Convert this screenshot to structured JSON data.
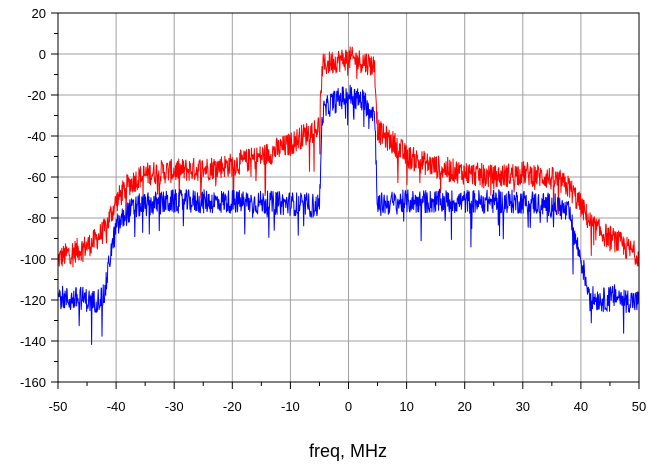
{
  "chart_data": {
    "type": "line",
    "title": "",
    "xlabel": "freq, MHz",
    "ylabel": "",
    "xlim": [
      -50,
      50
    ],
    "ylim": [
      -160,
      20
    ],
    "x_ticks": [
      -50,
      -40,
      -30,
      -20,
      -10,
      0,
      10,
      20,
      30,
      40,
      50
    ],
    "y_ticks": [
      20,
      0,
      -20,
      -40,
      -60,
      -80,
      -100,
      -120,
      -140,
      -160
    ],
    "grid": true,
    "legend": "none",
    "series": [
      {
        "color": "#ff0000",
        "x": [
          -50,
          -48,
          -46,
          -44,
          -42,
          -40,
          -38,
          -36,
          -34,
          -30,
          -25,
          -20,
          -15,
          -10,
          -8,
          -6,
          -5,
          -4.5,
          -3,
          0,
          3,
          4.5,
          5,
          6,
          8,
          10,
          15,
          20,
          25,
          30,
          34,
          36,
          38,
          40,
          42,
          44,
          46,
          48,
          50
        ],
        "y": [
          -100,
          -97,
          -95,
          -92,
          -86,
          -72,
          -64,
          -60,
          -58,
          -57,
          -56,
          -54,
          -50,
          -44,
          -40,
          -37,
          -35,
          -6,
          -4,
          -2,
          -4,
          -6,
          -37,
          -40,
          -44,
          -50,
          -55,
          -58,
          -60,
          -58,
          -60,
          -62,
          -65,
          -74,
          -84,
          -88,
          -91,
          -95,
          -98
        ]
      },
      {
        "color": "#0000ff",
        "x": [
          -50,
          -48,
          -46,
          -44,
          -42,
          -41,
          -40,
          -38,
          -36,
          -30,
          -20,
          -10,
          -5,
          -4.5,
          -3,
          0,
          3,
          4.5,
          5,
          6,
          10,
          20,
          30,
          36,
          38,
          39,
          40,
          41,
          42,
          44,
          46,
          48,
          50
        ],
        "y": [
          -118,
          -120,
          -119,
          -121,
          -118,
          -98,
          -85,
          -77,
          -74,
          -72,
          -72,
          -73,
          -74,
          -29,
          -24,
          -20,
          -24,
          -29,
          -74,
          -73,
          -72,
          -72,
          -72,
          -74,
          -78,
          -90,
          -100,
          -112,
          -119,
          -120,
          -118,
          -120,
          -121
        ]
      }
    ]
  }
}
